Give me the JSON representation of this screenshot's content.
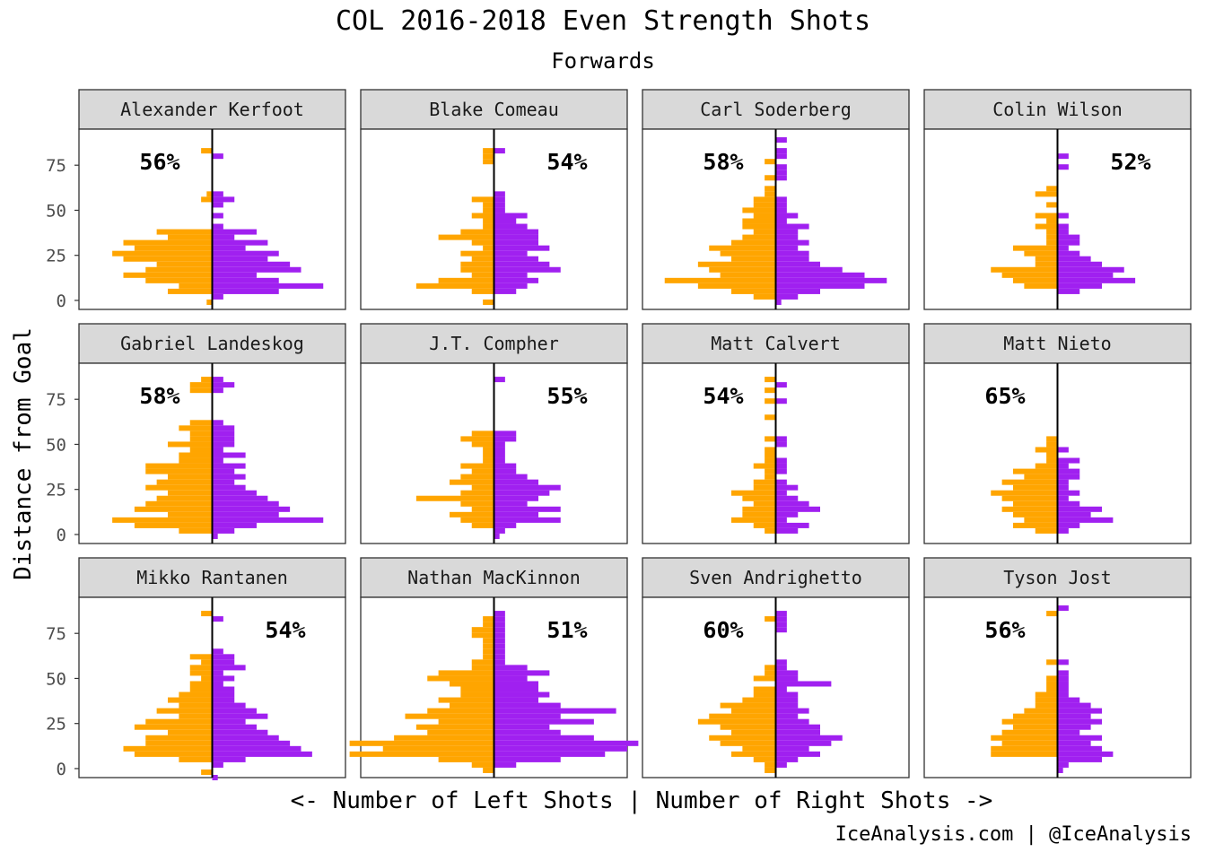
{
  "chart_data": {
    "type": "bar",
    "orientation": "horizontal",
    "title": "COL 2016-2018 Even Strength Shots",
    "subtitle": "Forwards",
    "xlabel": "<- Number of Left Shots | Number of Right Shots ->",
    "ylabel": "Distance from Goal",
    "caption": "IceAnalysis.com | @IceAnalysis",
    "y_ticks": [
      0,
      25,
      50,
      75
    ],
    "ylim": [
      -5,
      95
    ],
    "xlim": [
      -12,
      12
    ],
    "bin_size": 3,
    "colors": {
      "left": "#FFA500",
      "right": "#A020F0"
    },
    "facets": [
      {
        "player": "Alexander Kerfoot",
        "pct": "56%",
        "pct_side": "left",
        "distances": [
          -1,
          2,
          5,
          8,
          11,
          14,
          17,
          20,
          23,
          26,
          29,
          32,
          35,
          38,
          41,
          44,
          47,
          50,
          53,
          56,
          59,
          62,
          65,
          68,
          71,
          74,
          77,
          80,
          83
        ],
        "left": [
          0.5,
          0,
          4,
          3,
          6,
          8,
          6,
          5,
          8,
          9,
          7,
          8,
          4,
          5,
          0,
          0,
          0,
          0,
          0,
          1,
          0.5,
          0,
          0,
          0,
          0,
          0,
          0,
          0,
          1
        ],
        "right": [
          0,
          1,
          6,
          10,
          6,
          4,
          8,
          7,
          5,
          6,
          3,
          5,
          2,
          4,
          1,
          0,
          1,
          0,
          1,
          2,
          1,
          0,
          0,
          0,
          0,
          0,
          0,
          1,
          0
        ]
      },
      {
        "player": "Blake Comeau",
        "pct": "54%",
        "pct_side": "right",
        "distances": [
          -1,
          2,
          5,
          8,
          11,
          14,
          17,
          20,
          23,
          26,
          29,
          32,
          35,
          38,
          41,
          44,
          47,
          50,
          53,
          56,
          59,
          62,
          65,
          68,
          71,
          74,
          77,
          80,
          83
        ],
        "left": [
          1,
          0,
          2,
          7,
          5,
          2,
          3,
          3,
          2,
          3,
          1,
          2,
          5,
          3,
          1,
          1,
          2,
          1,
          1,
          2,
          0,
          0,
          0,
          0,
          0,
          0,
          1,
          1,
          1
        ],
        "right": [
          0,
          0,
          2,
          3,
          4,
          3,
          6,
          5,
          4,
          3,
          5,
          4,
          4,
          4,
          3,
          2,
          3,
          1,
          1,
          1,
          1,
          0,
          0,
          0,
          0,
          0,
          0,
          0,
          1
        ]
      },
      {
        "player": "Carl Soderberg",
        "pct": "58%",
        "pct_side": "left",
        "distances": [
          -1,
          2,
          5,
          8,
          11,
          14,
          17,
          20,
          23,
          26,
          29,
          32,
          35,
          38,
          41,
          44,
          47,
          50,
          53,
          56,
          59,
          62,
          65,
          68,
          71,
          74,
          77,
          80,
          83,
          86,
          89
        ],
        "left": [
          0,
          2,
          4,
          7,
          10,
          5,
          6,
          7,
          4,
          5,
          6,
          4,
          3,
          2,
          3,
          3,
          2,
          3,
          2,
          2,
          1,
          1,
          0,
          1,
          0,
          0,
          1,
          0,
          0,
          0,
          0
        ],
        "right": [
          0.5,
          2,
          4,
          8,
          10,
          8,
          6,
          4,
          3,
          3,
          2,
          3,
          2,
          2,
          3,
          1,
          2,
          1,
          1,
          1,
          0,
          0,
          0,
          1,
          1,
          1,
          0,
          1,
          1,
          0,
          1
        ]
      },
      {
        "player": "Colin Wilson",
        "pct": "52%",
        "pct_side": "right",
        "distances": [
          2,
          5,
          8,
          11,
          14,
          17,
          20,
          23,
          26,
          29,
          32,
          35,
          38,
          41,
          44,
          47,
          50,
          53,
          56,
          59,
          62,
          65,
          68,
          71,
          74,
          77,
          80,
          83
        ],
        "left": [
          0,
          0,
          3,
          4,
          5,
          6,
          2,
          2,
          3,
          4,
          1,
          1,
          1,
          2,
          1,
          2,
          0,
          1,
          0,
          2,
          1,
          0,
          0,
          0,
          0,
          0,
          0,
          0
        ],
        "right": [
          0,
          2,
          4,
          7,
          5,
          6,
          4,
          3,
          2,
          1,
          2,
          2,
          1,
          1,
          0,
          1,
          0,
          0,
          0,
          0,
          0,
          0,
          0,
          0,
          1,
          0,
          1,
          0
        ]
      },
      {
        "player": "Gabriel Landeskog",
        "pct": "58%",
        "pct_side": "left",
        "distances": [
          -1,
          2,
          5,
          8,
          11,
          14,
          17,
          20,
          23,
          26,
          29,
          32,
          35,
          38,
          41,
          44,
          47,
          50,
          53,
          56,
          59,
          62,
          65,
          68,
          71,
          74,
          77,
          80,
          83,
          86
        ],
        "left": [
          0,
          3,
          7,
          9,
          4,
          7,
          6,
          5,
          4,
          6,
          5,
          4,
          6,
          6,
          3,
          3,
          2,
          4,
          2,
          2,
          3,
          2,
          0,
          0,
          0,
          0,
          0,
          2,
          2,
          1
        ],
        "right": [
          0.5,
          2,
          4,
          10,
          6,
          7,
          6,
          5,
          4,
          3,
          2,
          3,
          2,
          3,
          1,
          3,
          1,
          2,
          2,
          2,
          2,
          1,
          0,
          0,
          0,
          0,
          0,
          1,
          2,
          1
        ]
      },
      {
        "player": "J.T. Compher",
        "pct": "55%",
        "pct_side": "right",
        "distances": [
          -1,
          2,
          5,
          8,
          11,
          14,
          17,
          20,
          23,
          26,
          29,
          32,
          35,
          38,
          41,
          44,
          47,
          50,
          53,
          56,
          59,
          62,
          65,
          68,
          71,
          74,
          77,
          80,
          83,
          86
        ],
        "left": [
          0,
          0,
          2,
          3,
          4,
          2,
          3,
          7,
          3,
          2,
          4,
          3,
          2,
          3,
          1,
          1,
          1,
          2,
          3,
          2,
          0,
          0,
          0,
          0,
          0,
          0,
          0,
          0,
          0,
          0
        ],
        "right": [
          0.5,
          1,
          2,
          6,
          4,
          6,
          3,
          4,
          5,
          6,
          4,
          3,
          2,
          2,
          1,
          1,
          1,
          1,
          2,
          2,
          0,
          0,
          0,
          0,
          0,
          0,
          0,
          0,
          0,
          1
        ]
      },
      {
        "player": "Matt Calvert",
        "pct": "54%",
        "pct_side": "left",
        "distances": [
          2,
          5,
          8,
          11,
          14,
          17,
          20,
          23,
          26,
          29,
          32,
          35,
          38,
          41,
          44,
          47,
          50,
          53,
          56,
          59,
          62,
          65,
          68,
          71,
          74,
          77,
          80,
          83,
          86
        ],
        "left": [
          1,
          2,
          4,
          3,
          3,
          2,
          3,
          4,
          2,
          2,
          1,
          1,
          2,
          1,
          1,
          1,
          0,
          1,
          0,
          0,
          0,
          1,
          0,
          0,
          1,
          0,
          1,
          0,
          1
        ],
        "right": [
          2,
          3,
          1,
          2,
          4,
          3,
          2,
          1,
          2,
          1,
          0,
          1,
          1,
          1,
          0,
          0,
          1,
          1,
          0,
          0,
          0,
          0,
          0,
          0,
          1,
          0,
          0,
          1,
          0
        ]
      },
      {
        "player": "Matt Nieto",
        "pct": "65%",
        "pct_side": "left",
        "distances": [
          2,
          5,
          8,
          11,
          14,
          17,
          20,
          23,
          26,
          29,
          32,
          35,
          38,
          41,
          44,
          47,
          50,
          53,
          56,
          59,
          62,
          65,
          68
        ],
        "left": [
          2,
          4,
          3,
          4,
          5,
          4,
          5,
          6,
          4,
          5,
          3,
          4,
          2,
          1,
          1,
          2,
          1,
          1,
          0,
          0,
          0,
          0,
          0
        ],
        "right": [
          1,
          2,
          5,
          3,
          4,
          2,
          1,
          2,
          1,
          1,
          2,
          2,
          1,
          2,
          0,
          1,
          0,
          0,
          0,
          0,
          0,
          0,
          0
        ]
      },
      {
        "player": "Mikko Rantanen",
        "pct": "54%",
        "pct_side": "right",
        "distances": [
          -5,
          -2,
          2,
          5,
          8,
          11,
          14,
          17,
          20,
          23,
          26,
          29,
          32,
          35,
          38,
          41,
          44,
          47,
          50,
          53,
          56,
          59,
          62,
          65,
          68,
          71,
          74,
          77,
          80,
          83,
          86
        ],
        "left": [
          0,
          1,
          0,
          3,
          7,
          8,
          6,
          6,
          4,
          7,
          6,
          3,
          5,
          3,
          4,
          3,
          2,
          2,
          1,
          2,
          2,
          1,
          2,
          0,
          0,
          0,
          0,
          0,
          0,
          0,
          1
        ],
        "right": [
          0.5,
          0,
          1,
          3,
          9,
          8,
          7,
          6,
          5,
          4,
          3,
          5,
          4,
          3,
          2,
          2,
          2,
          1,
          2,
          1,
          3,
          2,
          2,
          1,
          0,
          0,
          0,
          0,
          0,
          1,
          0
        ]
      },
      {
        "player": "Nathan MacKinnon",
        "pct": "51%",
        "pct_side": "right",
        "distances": [
          -1,
          2,
          5,
          8,
          11,
          14,
          17,
          20,
          23,
          26,
          29,
          32,
          35,
          38,
          41,
          44,
          47,
          50,
          53,
          56,
          59,
          62,
          65,
          68,
          71,
          74,
          77,
          80,
          83,
          86
        ],
        "left": [
          1,
          2,
          5,
          13,
          10,
          13,
          9,
          6,
          7,
          5,
          8,
          6,
          4,
          5,
          3,
          3,
          4,
          6,
          5,
          2,
          2,
          1,
          1,
          1,
          1,
          2,
          2,
          1,
          1,
          0
        ],
        "right": [
          0,
          2,
          6,
          10,
          12,
          13,
          9,
          6,
          5,
          9,
          6,
          11,
          6,
          4,
          5,
          4,
          4,
          3,
          5,
          3,
          1,
          1,
          1,
          1,
          1,
          1,
          1,
          1,
          1,
          1
        ]
      },
      {
        "player": "Sven Andrighetto",
        "pct": "60%",
        "pct_side": "left",
        "distances": [
          -1,
          2,
          5,
          8,
          11,
          14,
          17,
          20,
          23,
          26,
          29,
          32,
          35,
          38,
          41,
          44,
          47,
          50,
          53,
          56,
          59,
          62,
          65,
          68,
          71,
          74,
          77,
          80,
          83,
          86
        ],
        "left": [
          1,
          1,
          2,
          4,
          3,
          5,
          6,
          4,
          5,
          7,
          6,
          4,
          5,
          3,
          2,
          2,
          0,
          2,
          1,
          1,
          0,
          0,
          0,
          0,
          0,
          0,
          0,
          0,
          1,
          0
        ],
        "right": [
          0,
          1,
          2,
          4,
          3,
          5,
          6,
          4,
          4,
          3,
          2,
          3,
          2,
          2,
          2,
          1,
          5,
          2,
          2,
          1,
          1,
          0,
          0,
          0,
          0,
          0,
          1,
          1,
          1,
          1
        ]
      },
      {
        "player": "Tyson Jost",
        "pct": "56%",
        "pct_side": "left",
        "distances": [
          -1,
          2,
          5,
          8,
          11,
          14,
          17,
          20,
          23,
          26,
          29,
          32,
          35,
          38,
          41,
          44,
          47,
          50,
          53,
          56,
          59,
          62,
          65,
          68,
          71,
          74,
          77,
          80,
          83,
          86,
          89
        ],
        "left": [
          0,
          0,
          0,
          6,
          6,
          5,
          6,
          5,
          4,
          5,
          4,
          3,
          2,
          2,
          2,
          1,
          1,
          1,
          0,
          0,
          1,
          0,
          0,
          0,
          0,
          0,
          0,
          0,
          0,
          1,
          0
        ],
        "right": [
          0.5,
          1,
          4,
          5,
          4,
          3,
          4,
          2,
          3,
          4,
          3,
          4,
          3,
          2,
          1,
          1,
          1,
          1,
          1,
          0,
          1,
          0,
          0,
          0,
          0,
          0,
          0,
          0,
          0,
          0,
          1
        ]
      }
    ]
  }
}
